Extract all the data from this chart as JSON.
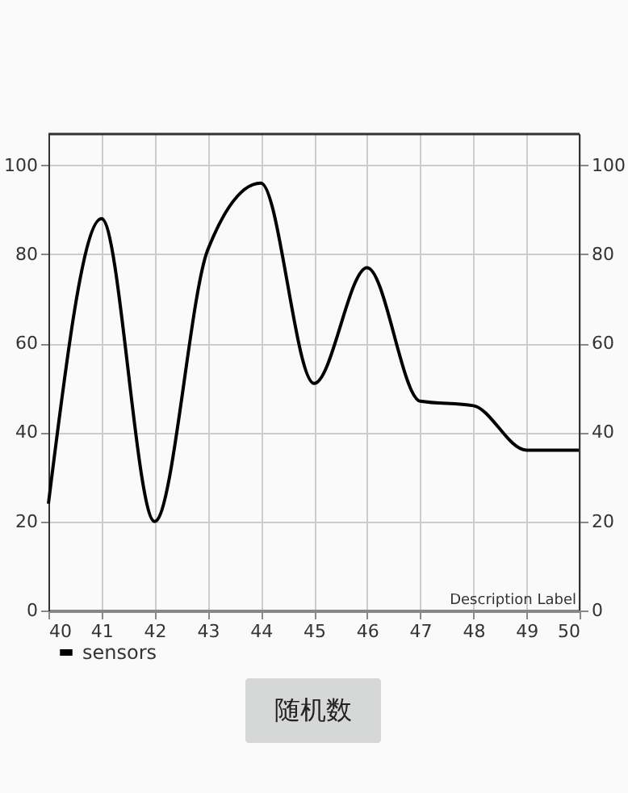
{
  "chart_data": {
    "type": "line",
    "x": [
      40,
      41,
      42,
      43,
      44,
      45,
      46,
      47,
      48,
      49,
      50
    ],
    "series": [
      {
        "name": "sensors",
        "color": "#000000",
        "values": [
          24,
          88,
          20,
          81,
          96,
          51,
          77,
          47,
          46,
          36,
          36
        ]
      }
    ],
    "xlim": [
      40,
      50
    ],
    "xticks": [
      40,
      41,
      42,
      43,
      44,
      45,
      46,
      47,
      48,
      49,
      50
    ],
    "ylim": [
      0,
      107
    ],
    "yticks": [
      0,
      20,
      40,
      60,
      80,
      100
    ],
    "y2lim": [
      0,
      107
    ],
    "y2ticks": [
      0,
      20,
      40,
      60,
      80,
      100
    ],
    "grid": true,
    "legend": "bottom left",
    "marker": "none",
    "line_style": "solid",
    "annotations": [
      "Description Label",
      "随机数"
    ]
  }
}
